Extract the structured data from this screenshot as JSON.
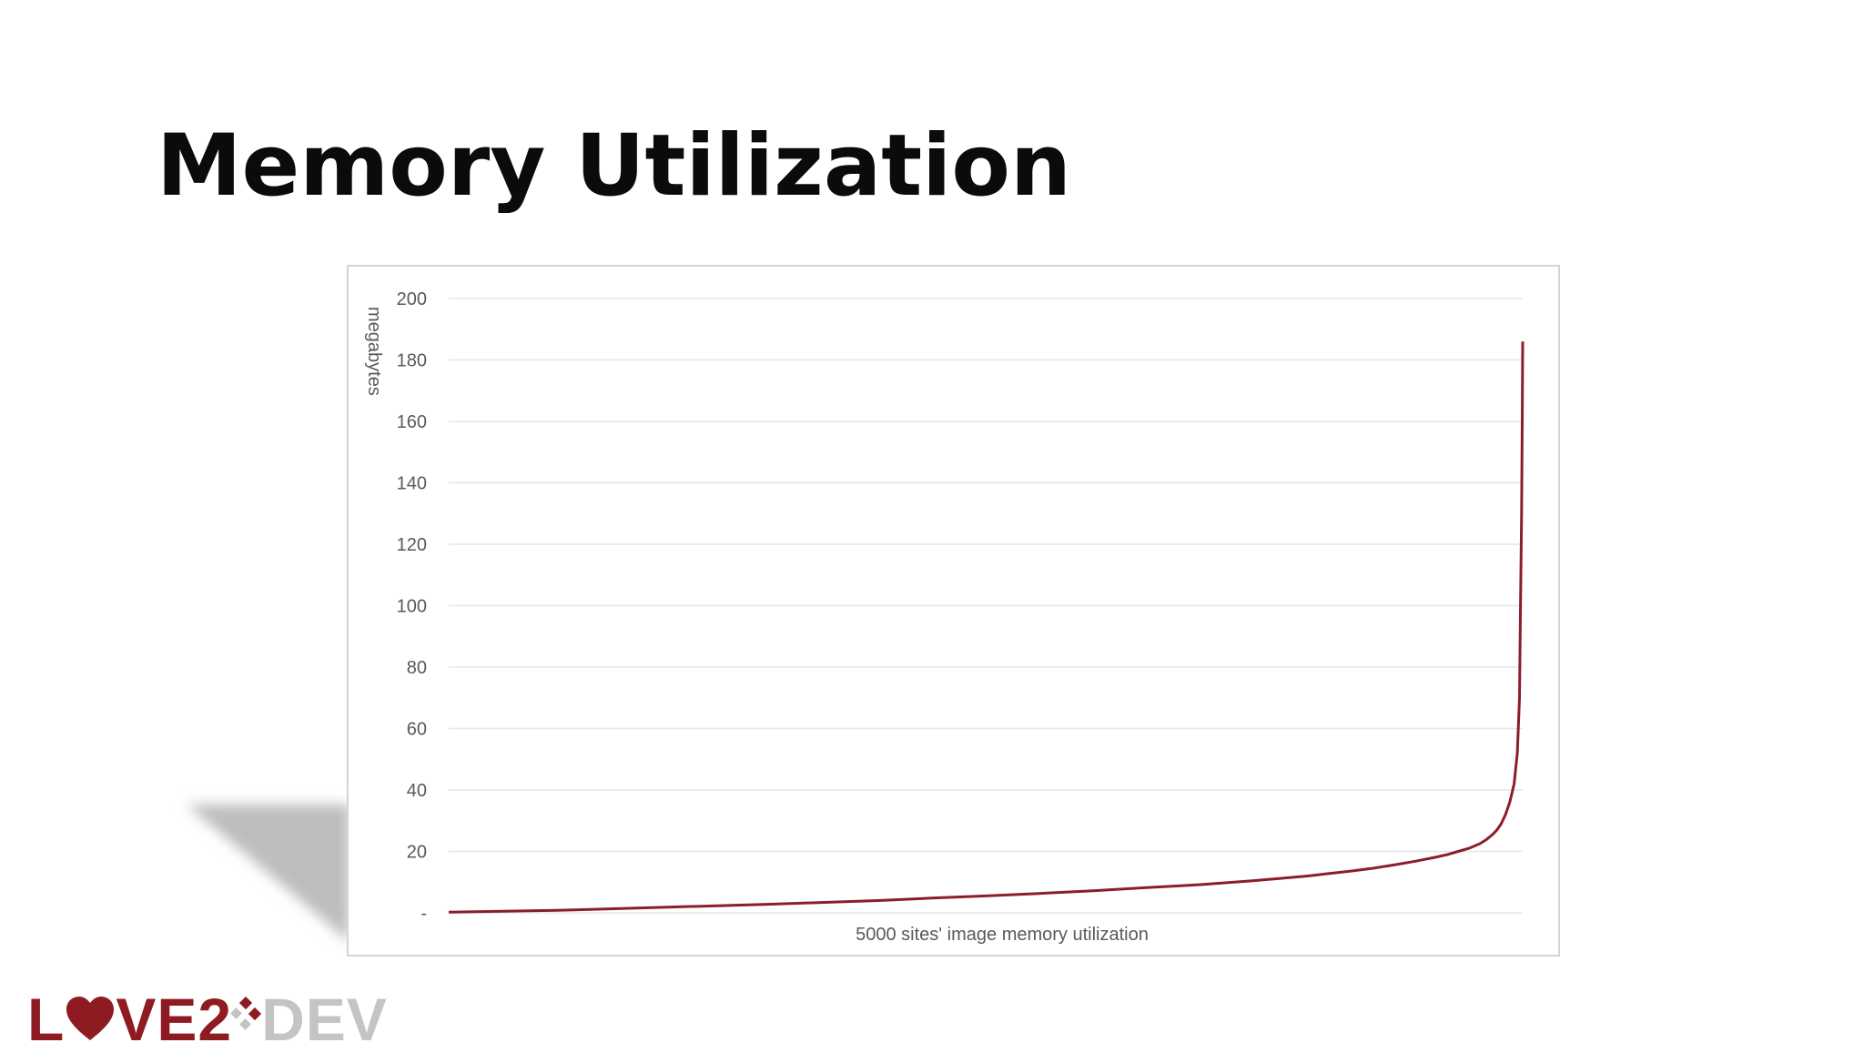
{
  "slide": {
    "title": "Memory Utilization"
  },
  "logo": {
    "part1": "L",
    "part2": "VE2",
    "part3": "DEV",
    "heart_icon": "heart-icon",
    "diamond_icon": "diamond-dots-icon",
    "primary_color": "#8e1b22",
    "secondary_color": "#c4c4c4"
  },
  "chart_data": {
    "type": "line",
    "title": "",
    "xlabel": "5000 sites' image memory utilization",
    "ylabel": "megabytes",
    "ylim": [
      0,
      200
    ],
    "yticks": [
      0,
      20,
      40,
      60,
      80,
      100,
      120,
      140,
      160,
      180,
      200
    ],
    "ytick_labels": [
      "-",
      "20",
      "40",
      "60",
      "80",
      "100",
      "120",
      "140",
      "160",
      "180",
      "200"
    ],
    "xlim": [
      0,
      5000
    ],
    "grid": true,
    "legend": "none",
    "line_color": "#8b1d2c",
    "series": [
      {
        "x": [
          0,
          250,
          500,
          750,
          1000,
          1250,
          1500,
          1750,
          2000,
          2250,
          2500,
          2750,
          3000,
          3250,
          3500,
          3750,
          4000,
          4100,
          4200,
          4300,
          4400,
          4500,
          4600,
          4650,
          4700,
          4750,
          4800,
          4830,
          4860,
          4880,
          4900,
          4920,
          4940,
          4960,
          4975,
          4985,
          4990,
          4995,
          4998,
          5000
        ],
        "y": [
          0.2,
          0.5,
          0.8,
          1.3,
          1.8,
          2.3,
          2.8,
          3.4,
          4.0,
          4.8,
          5.5,
          6.3,
          7.2,
          8.2,
          9.2,
          10.5,
          12.0,
          12.8,
          13.6,
          14.5,
          15.6,
          16.8,
          18.2,
          19.0,
          20.0,
          21.0,
          22.5,
          23.8,
          25.5,
          27.0,
          29.0,
          32.0,
          36.0,
          42.0,
          52.0,
          70.0,
          100.0,
          130.0,
          160.0,
          186.0
        ]
      }
    ]
  }
}
